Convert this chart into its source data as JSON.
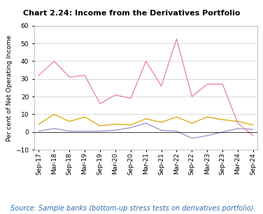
{
  "title": "Chart 2.24: Income from the Derivatives Portfolio",
  "ylabel": "Per cent of Net Operating Income",
  "source": "Source: Sample banks (bottom-up stress tests on derivatives portfolio).",
  "xlabels": [
    "Sep-17",
    "Mar-18",
    "Sep-18",
    "Mar-19",
    "Sep-19",
    "Mar-20",
    "Sep-20",
    "Mar-21",
    "Sep-21",
    "Mar-22",
    "Sep-22",
    "Mar-23",
    "Sep-23",
    "Mar-24",
    "Sep-24"
  ],
  "ylim": [
    -10,
    60
  ],
  "yticks": [
    -10,
    0,
    10,
    20,
    30,
    40,
    50,
    60
  ],
  "PSBs": [
    0.5,
    2.0,
    0.5,
    0.5,
    0.5,
    1.0,
    2.5,
    5.0,
    1.0,
    0.5,
    -3.5,
    -2.0,
    0.0,
    2.0,
    1.5
  ],
  "PVBs": [
    4.5,
    10.0,
    6.0,
    8.5,
    3.5,
    4.5,
    4.0,
    7.5,
    5.5,
    8.5,
    5.0,
    8.5,
    7.0,
    6.0,
    4.0
  ],
  "FBs": [
    32.0,
    40.0,
    31.0,
    32.0,
    16.0,
    21.0,
    19.0,
    40.0,
    26.0,
    52.5,
    20.0,
    27.0,
    27.0,
    5.0,
    -2.0
  ],
  "PSBs_color": "#9b8dc8",
  "PVBs_color": "#d4a800",
  "FBs_color": "#e87fa0",
  "background_color": "#ffffff",
  "title_fontsize": 8.0,
  "axis_fontsize": 6.5,
  "legend_fontsize": 7.0,
  "source_fontsize": 7.0
}
